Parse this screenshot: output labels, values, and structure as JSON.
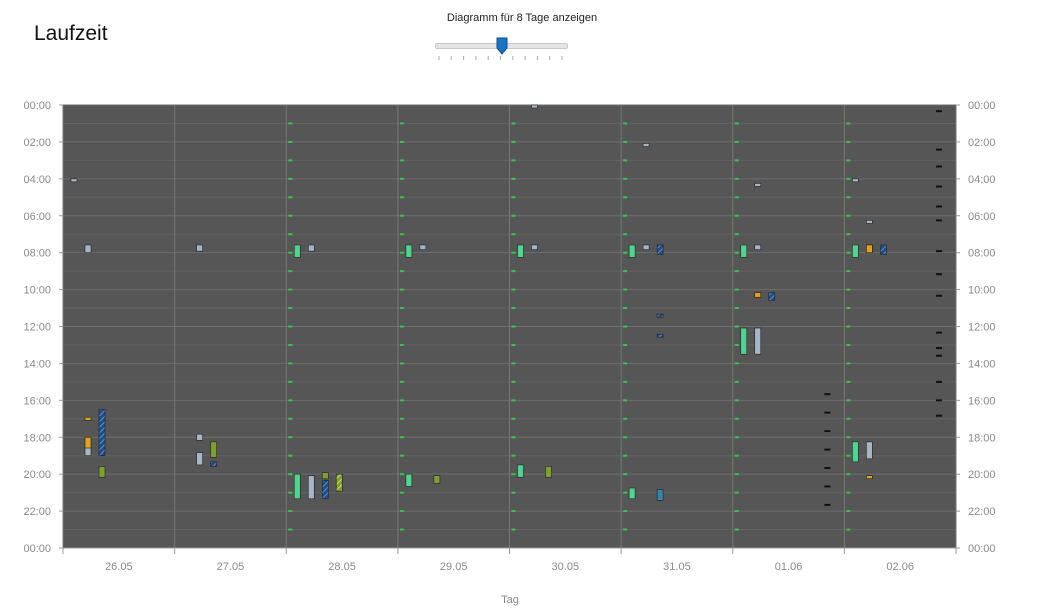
{
  "title": "Laufzeit",
  "slider": {
    "label": "Diagramm für 8 Tage anzeigen",
    "value": 4,
    "min": 0,
    "max": 10
  },
  "colors": {
    "background": "#565656",
    "green": "#2ecc40",
    "mint": "#4fd58f",
    "lightblue": "#a5b6c7",
    "olive": "#7ea12d",
    "orange": "#e0a21c",
    "navy": "#1f4e8c",
    "teal": "#2f87b0",
    "black": "#111111"
  },
  "chart_data": {
    "type": "bar",
    "xlabel": "Tag",
    "ylabel": "",
    "ylim": [
      "00:00",
      "24:00"
    ],
    "y_ticks": [
      "00:00",
      "02:00",
      "04:00",
      "06:00",
      "08:00",
      "10:00",
      "12:00",
      "14:00",
      "16:00",
      "18:00",
      "20:00",
      "22:00",
      "00:00"
    ],
    "categories": [
      "26.05",
      "27.05",
      "28.05",
      "29.05",
      "30.05",
      "31.05",
      "01.06",
      "02.06"
    ],
    "grid": true,
    "series": [
      {
        "style": "lightblue",
        "values": [
          {
            "day": 0,
            "lane": 0,
            "start": "04:00",
            "end": "04:05"
          },
          {
            "day": 0,
            "lane": 1,
            "start": "07:35",
            "end": "08:00"
          },
          {
            "day": 0,
            "lane": 1,
            "start": "18:15",
            "end": "19:00"
          },
          {
            "day": 1,
            "lane": 1,
            "start": "07:35",
            "end": "07:55"
          },
          {
            "day": 1,
            "lane": 1,
            "start": "17:50",
            "end": "18:10"
          },
          {
            "day": 1,
            "lane": 1,
            "start": "18:50",
            "end": "19:30"
          },
          {
            "day": 2,
            "lane": 1,
            "start": "07:35",
            "end": "07:55"
          },
          {
            "day": 2,
            "lane": 1,
            "start": "20:05",
            "end": "21:20"
          },
          {
            "day": 3,
            "lane": 1,
            "start": "07:35",
            "end": "07:50"
          },
          {
            "day": 4,
            "lane": 1,
            "start": "00:00",
            "end": "00:05"
          },
          {
            "day": 4,
            "lane": 1,
            "start": "07:35",
            "end": "07:50"
          },
          {
            "day": 5,
            "lane": 1,
            "start": "02:05",
            "end": "02:15"
          },
          {
            "day": 5,
            "lane": 1,
            "start": "07:35",
            "end": "07:50"
          },
          {
            "day": 6,
            "lane": 1,
            "start": "04:15",
            "end": "04:20"
          },
          {
            "day": 6,
            "lane": 1,
            "start": "07:35",
            "end": "07:50"
          },
          {
            "day": 6,
            "lane": 1,
            "start": "12:05",
            "end": "13:30"
          },
          {
            "day": 7,
            "lane": 0,
            "start": "04:00",
            "end": "04:05"
          },
          {
            "day": 7,
            "lane": 1,
            "start": "06:15",
            "end": "06:25"
          },
          {
            "day": 7,
            "lane": 1,
            "start": "07:35",
            "end": "08:00"
          },
          {
            "day": 7,
            "lane": 1,
            "start": "18:15",
            "end": "19:10"
          }
        ]
      },
      {
        "style": "orange",
        "values": [
          {
            "day": 0,
            "lane": 1,
            "start": "16:55",
            "end": "17:05"
          },
          {
            "day": 0,
            "lane": 1,
            "start": "18:00",
            "end": "18:35"
          },
          {
            "day": 6,
            "lane": 1,
            "start": "10:10",
            "end": "10:25"
          },
          {
            "day": 7,
            "lane": 1,
            "start": "07:35",
            "end": "08:00"
          },
          {
            "day": 7,
            "lane": 1,
            "start": "20:05",
            "end": "20:10"
          }
        ]
      },
      {
        "style": "navy-hatched",
        "values": [
          {
            "day": 0,
            "lane": 2,
            "start": "16:30",
            "end": "19:00"
          },
          {
            "day": 1,
            "lane": 2,
            "start": "19:20",
            "end": "19:35"
          },
          {
            "day": 2,
            "lane": 2,
            "start": "20:20",
            "end": "21:20"
          },
          {
            "day": 5,
            "lane": 2,
            "start": "07:35",
            "end": "08:05"
          },
          {
            "day": 5,
            "lane": 2,
            "start": "11:20",
            "end": "11:25"
          },
          {
            "day": 5,
            "lane": 2,
            "start": "12:25",
            "end": "12:30"
          },
          {
            "day": 6,
            "lane": 2,
            "start": "10:10",
            "end": "10:35"
          },
          {
            "day": 7,
            "lane": 2,
            "start": "07:35",
            "end": "08:05"
          }
        ]
      },
      {
        "style": "olive",
        "values": [
          {
            "day": 0,
            "lane": 2,
            "start": "19:35",
            "end": "20:10"
          },
          {
            "day": 1,
            "lane": 2,
            "start": "18:15",
            "end": "19:05"
          },
          {
            "day": 2,
            "lane": 2,
            "start": "19:55",
            "end": "20:15"
          },
          {
            "day": 2,
            "lane": 3,
            "start": "20:00",
            "end": "20:55"
          },
          {
            "day": 3,
            "lane": 2,
            "start": "20:05",
            "end": "20:30"
          },
          {
            "day": 4,
            "lane": 2,
            "start": "19:35",
            "end": "20:10"
          }
        ]
      },
      {
        "style": "mint",
        "values": [
          {
            "day": 2,
            "lane": 0,
            "start": "07:35",
            "end": "08:15"
          },
          {
            "day": 2,
            "lane": 0,
            "start": "20:00",
            "end": "21:20"
          },
          {
            "day": 3,
            "lane": 0,
            "start": "07:35",
            "end": "08:15"
          },
          {
            "day": 3,
            "lane": 0,
            "start": "20:00",
            "end": "20:40"
          },
          {
            "day": 4,
            "lane": 0,
            "start": "07:35",
            "end": "08:15"
          },
          {
            "day": 4,
            "lane": 0,
            "start": "19:30",
            "end": "20:10"
          },
          {
            "day": 5,
            "lane": 0,
            "start": "07:35",
            "end": "08:15"
          },
          {
            "day": 5,
            "lane": 0,
            "start": "20:45",
            "end": "21:20"
          },
          {
            "day": 6,
            "lane": 0,
            "start": "07:35",
            "end": "08:15"
          },
          {
            "day": 6,
            "lane": 0,
            "start": "12:05",
            "end": "13:30"
          },
          {
            "day": 7,
            "lane": 0,
            "start": "07:35",
            "end": "08:15"
          },
          {
            "day": 7,
            "lane": 0,
            "start": "18:15",
            "end": "19:20"
          }
        ]
      },
      {
        "style": "teal",
        "values": [
          {
            "day": 5,
            "lane": 2,
            "start": "20:50",
            "end": "21:25"
          }
        ]
      }
    ]
  }
}
